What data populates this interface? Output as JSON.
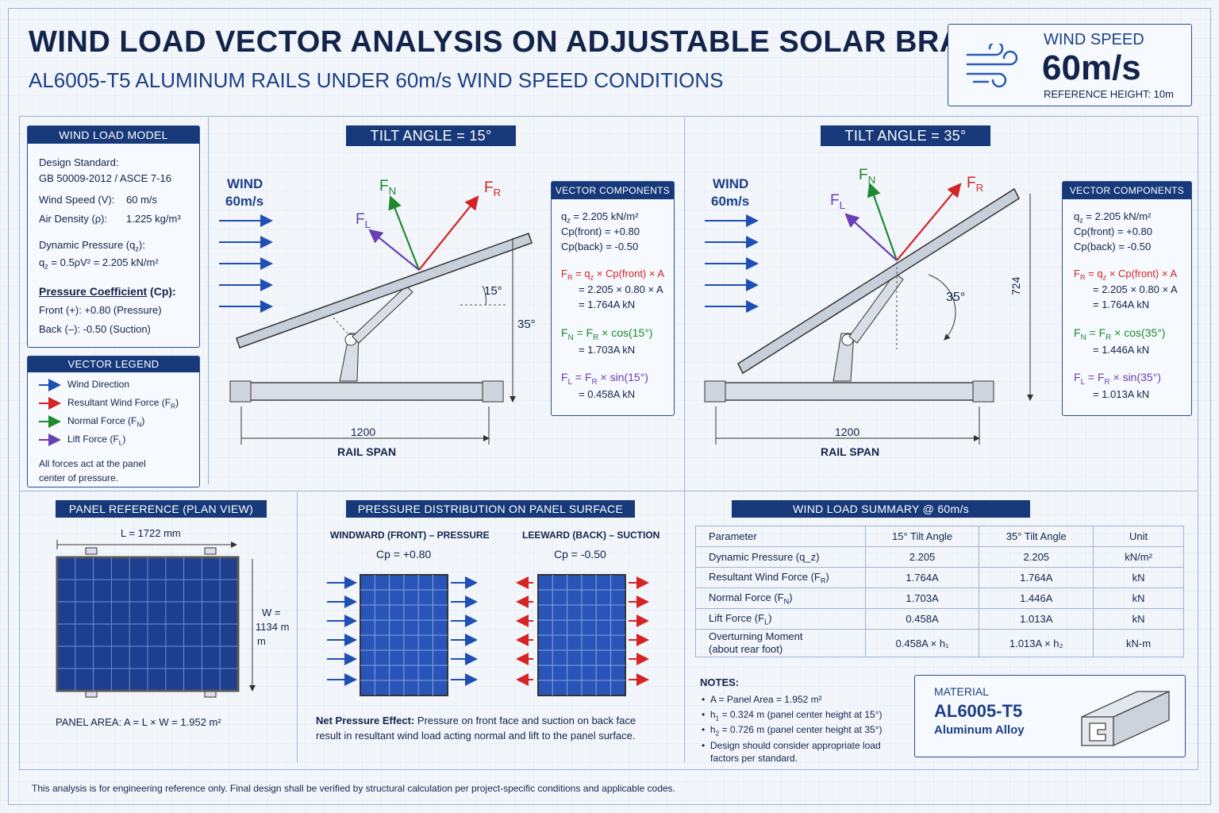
{
  "header": {
    "title": "WIND LOAD VECTOR ANALYSIS ON ADJUSTABLE SOLAR BRACKET",
    "subtitle": "AL6005-T5 ALUMINUM RAILS UNDER 60m/s WIND SPEED CONDITIONS"
  },
  "speed_box": {
    "label": "WIND SPEED",
    "value": "60m/s",
    "ref": "REFERENCE HEIGHT: 10m",
    "icon": "wind-icon"
  },
  "model": {
    "title": "WIND LOAD MODEL",
    "std_label": "Design Standard:",
    "std_value": "GB 50009-2012 / ASCE 7-16",
    "v_label": "Wind Speed (V):",
    "v_value": "60 m/s",
    "rho_label": "Air Density (ρ):",
    "rho_value": "1.225 kg/m³",
    "dp_label": "Dynamic Pressure (q",
    "dp_label_sub": "z",
    "dp_label_end": "):",
    "dp_formula": "= 0.5ρV² = 2.205 kN/m²",
    "pc_title": "Pressure Coefficient",
    "pc_title2": " (Cp):",
    "front": "Front (+): +0.80 (Pressure)",
    "back": "Back (–): -0.50 (Suction)"
  },
  "legend": {
    "title": "VECTOR LEGEND",
    "items": [
      {
        "label": "Wind Direction",
        "color": "#1f4fb4"
      },
      {
        "label": "Resultant Wind Force (F",
        "sub": "R",
        "color": "#d42424"
      },
      {
        "label": "Normal Force (F",
        "sub": "N",
        "color": "#1f8a2d"
      },
      {
        "label": "Lift Force (F",
        "sub": "L",
        "color": "#6a3fb5"
      }
    ],
    "note1": "All forces act at the panel",
    "note2": "center of pressure."
  },
  "d15": {
    "title": "TILT ANGLE = 15°",
    "wind1": "WIND",
    "wind2": "60m/s",
    "angle": "15°",
    "height": "35°",
    "span": "1200",
    "span_label": "RAIL SPAN"
  },
  "d35": {
    "title": "TILT ANGLE = 35°",
    "wind1": "WIND",
    "wind2": "60m/s",
    "angle": "35°",
    "height": "724",
    "span": "1200",
    "span_label": "RAIL SPAN"
  },
  "vc15": {
    "title": "VECTOR COMPONENTS",
    "qz": "= 2.205 kN/m²",
    "cpf": "Cp(front) = +0.80",
    "cpb": "Cp(back) = -0.50",
    "fr1": "= q",
    "fr1b": "× Cp(front) × A",
    "fr2": "= 2.205 × 0.80 × A",
    "fr3": "= 1.764A kN",
    "fn1": "= F",
    "fn1b": "× cos(15°)",
    "fn2": "= 1.703A kN",
    "fl1": "= F",
    "fl1b": "× sin(15°)",
    "fl2": "= 0.458A kN"
  },
  "vc35": {
    "title": "VECTOR COMPONENTS",
    "qz": "= 2.205 kN/m²",
    "cpf": "Cp(front) = +0.80",
    "cpb": "Cp(back) = -0.50",
    "fr1": "= q",
    "fr1b": "× Cp(front) × A",
    "fr2": "= 2.205 × 0.80 × A",
    "fr3": "= 1.764A kN",
    "fn1": "= F",
    "fn1b": "× cos(35°)",
    "fn2": "= 1.446A kN",
    "fl1": "= F",
    "fl1b": "× sin(35°)",
    "fl2": "= 1.013A kN"
  },
  "panel": {
    "title": "PANEL REFERENCE (PLAN VIEW)",
    "length": "L = 1722 mm",
    "width1": "W =",
    "width2": "1134 m",
    "width3": "m",
    "area": "PANEL AREA: A = L × W = 1.952 m²"
  },
  "pressure": {
    "title": "PRESSURE DISTRIBUTION ON PANEL SURFACE",
    "front_label": "WINDWARD (FRONT) – PRESSURE",
    "front_cp": "Cp = +0.80",
    "back_label": "LEEWARD (BACK) – SUCTION",
    "back_cp": "Cp = -0.50",
    "note_bold": "Net Pressure Effect:",
    "note1": " Pressure on front face and suction on back face",
    "note2": "result in resultant wind load acting normal and lift to the panel surface."
  },
  "summary": {
    "title": "WIND LOAD SUMMARY @ 60m/s",
    "rows": [
      [
        "Parameter",
        "15° Tilt Angle",
        "35° Tilt Angle",
        "Unit"
      ],
      [
        "Dynamic Pressure (q_z)",
        "2.205",
        "2.205",
        "kN/m²"
      ],
      [
        "Resultant Wind Force (F_R)",
        "1.764A",
        "1.764A",
        "kN"
      ],
      [
        "Normal Force (F_N)",
        "1.703A",
        "1.446A",
        "kN"
      ],
      [
        "Lift Force (F_L)",
        "0.458A",
        "1.013A",
        "kN"
      ],
      [
        "Overturning Moment\n(about rear foot)",
        "0.458A × h₁",
        "1.013A × h₂",
        "kN-m"
      ]
    ]
  },
  "notes": {
    "title": "NOTES:",
    "n1": "A = Panel Area = 1.952 m²",
    "n2": "= 0.324 m (panel center height at 15°)",
    "n3": "= 0.726 m (panel center height at 35°)",
    "n4a": "Design should consider appropriate load",
    "n4b": "factors per standard."
  },
  "material": {
    "label": "MATERIAL",
    "name": "AL6005-T5",
    "desc": "Aluminum Alloy"
  },
  "footer": "This analysis is for engineering reference only. Final design shall be verified by structural calculation per project-specific conditions and applicable codes."
}
